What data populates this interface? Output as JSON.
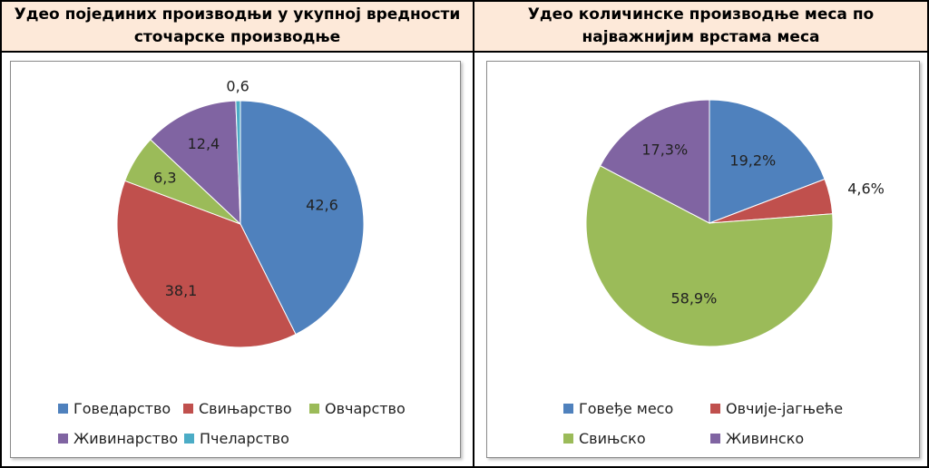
{
  "headers": {
    "left": "Удео појединих производњи у укупној вредности сточарске производње",
    "right": "Удео количинске производње меса по најважнијим врстама меса"
  },
  "chart_data": [
    {
      "type": "pie",
      "title": "Удео појединих производњи у укупној вредности сточарске производње",
      "legend_position": "bottom",
      "slices": [
        {
          "label": "Говедарство",
          "value": 42.6,
          "value_label": "42,6",
          "color": "#4f81bd"
        },
        {
          "label": "Свињарство",
          "value": 38.1,
          "value_label": "38,1",
          "color": "#c0504d"
        },
        {
          "label": "Овчарство",
          "value": 6.3,
          "value_label": "6,3",
          "color": "#9bbb59"
        },
        {
          "label": "Живинарство",
          "value": 12.4,
          "value_label": "12,4",
          "color": "#8064a2"
        },
        {
          "label": "Пчеларство",
          "value": 0.6,
          "value_label": "0,6",
          "color": "#4bacc6"
        }
      ],
      "legend_order": [
        "Говедарство",
        "Свињарство",
        "Овчарство",
        "Живинарство",
        "Пчеларство"
      ]
    },
    {
      "type": "pie",
      "title": "Удео количинске производње меса по најважнијим врстама меса",
      "legend_position": "bottom",
      "slices": [
        {
          "label": "Говеђе месо",
          "value": 19.2,
          "value_label": "19,2%",
          "color": "#4f81bd"
        },
        {
          "label": "Овчије-јагњеће",
          "value": 4.6,
          "value_label": "4,6%",
          "color": "#c0504d"
        },
        {
          "label": "Свињско",
          "value": 58.9,
          "value_label": "58,9%",
          "color": "#9bbb59"
        },
        {
          "label": "Живинско",
          "value": 17.3,
          "value_label": "17,3%",
          "color": "#8064a2"
        }
      ],
      "legend_order": [
        "Говеђе месо",
        "Овчије-јагњеће",
        "Свињско",
        "Живинско"
      ]
    }
  ]
}
